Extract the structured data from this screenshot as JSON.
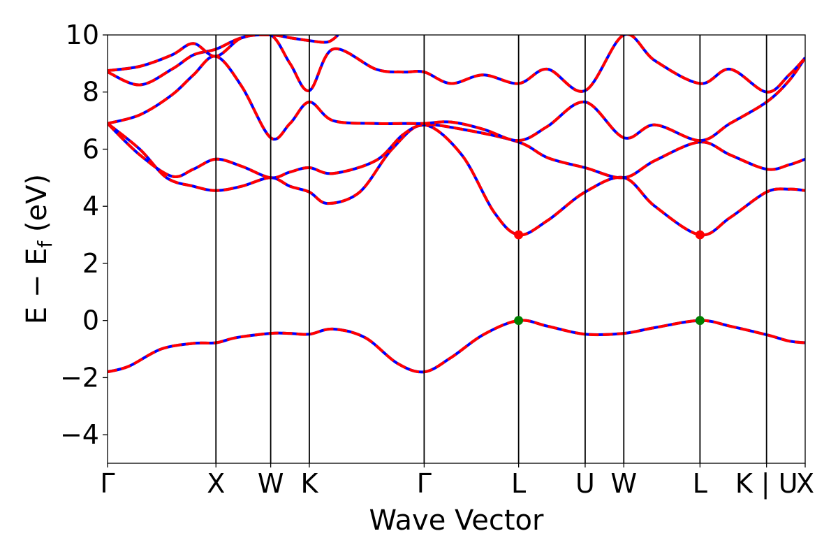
{
  "chart_data": {
    "type": "line",
    "xlabel": "Wave Vector",
    "ylabel": "E − E",
    "ylabel_sub": "f",
    "ylabel_unit": " (eV)",
    "ylim": [
      -5,
      10
    ],
    "yticks": [
      -4,
      -2,
      0,
      2,
      4,
      6,
      8,
      10
    ],
    "ytick_labels": [
      "−4",
      "−2",
      "0",
      "2",
      "4",
      "6",
      "8",
      "10"
    ],
    "xlim": [
      0,
      10
    ],
    "grid": false,
    "legend": "none",
    "kpath": [
      {
        "label": "Γ",
        "x": 0.0
      },
      {
        "label": "X",
        "x": 1.01
      },
      {
        "label": "W",
        "x": 1.52
      },
      {
        "label": "K",
        "x": 1.88
      },
      {
        "label": "Γ",
        "x": 2.95
      },
      {
        "label": "L",
        "x": 3.83
      },
      {
        "label": "U",
        "x": 4.45
      },
      {
        "label": "W",
        "x": 4.81
      },
      {
        "label": "L",
        "x": 5.52
      },
      {
        "label": "K | U",
        "x": 6.14
      },
      {
        "label": "X",
        "x": 6.5
      }
    ],
    "colors": {
      "band_solid": "#0000ff",
      "band_dashed": "#ff0000",
      "cbm_marker": "#ff0000",
      "vbm_marker": "#008000"
    },
    "series": [
      {
        "x": [
          0.0,
          0.2,
          0.5,
          0.8,
          1.01,
          1.2,
          1.52,
          1.7,
          1.88,
          2.1,
          2.4,
          2.7,
          2.95,
          3.2,
          3.5,
          3.83,
          4.1,
          4.45,
          4.81,
          5.1,
          5.52,
          5.8,
          6.14,
          6.35,
          6.5
        ],
        "y": [
          -1.8,
          -1.6,
          -1.0,
          -0.8,
          -0.78,
          -0.6,
          -0.45,
          -0.45,
          -0.48,
          -0.3,
          -0.6,
          -1.5,
          -1.8,
          -1.3,
          -0.5,
          0.0,
          -0.2,
          -0.48,
          -0.45,
          -0.25,
          0.0,
          -0.2,
          -0.5,
          -0.72,
          -0.78
        ]
      },
      {
        "x": [
          0.0,
          0.3,
          0.55,
          0.8,
          1.01,
          1.25,
          1.52,
          1.7,
          1.88,
          2.05,
          2.35,
          2.65,
          2.95,
          3.3,
          3.6,
          3.83,
          4.1,
          4.45,
          4.81,
          5.1,
          5.52,
          5.8,
          6.14,
          6.35,
          6.5
        ],
        "y": [
          6.9,
          6.0,
          5.0,
          4.7,
          4.55,
          4.7,
          5.0,
          4.7,
          4.5,
          4.1,
          4.5,
          6.0,
          6.85,
          5.8,
          3.8,
          3.0,
          3.5,
          4.5,
          5.0,
          4.0,
          3.0,
          3.6,
          4.5,
          4.6,
          4.55
        ]
      },
      {
        "x": [
          0.0,
          0.3,
          0.6,
          0.8,
          1.01,
          1.25,
          1.52,
          1.7,
          1.88,
          2.1,
          2.5,
          2.75,
          2.95,
          3.3,
          3.83,
          4.1,
          4.45,
          4.81,
          5.1,
          5.52,
          5.8,
          6.14,
          6.35,
          6.5
        ],
        "y": [
          6.9,
          5.8,
          5.05,
          5.3,
          5.65,
          5.4,
          5.0,
          5.2,
          5.35,
          5.15,
          5.6,
          6.5,
          6.85,
          6.7,
          6.25,
          5.7,
          5.35,
          5.0,
          5.6,
          6.25,
          5.8,
          5.3,
          5.45,
          5.65
        ]
      },
      {
        "x": [
          0.0,
          0.3,
          0.6,
          0.8,
          1.01,
          1.25,
          1.52,
          1.7,
          1.88,
          2.1,
          2.5,
          2.75,
          2.95,
          3.2,
          3.5,
          3.83,
          4.1,
          4.45,
          4.81,
          5.1,
          5.52,
          5.8,
          6.14,
          6.35,
          6.5
        ],
        "y": [
          6.9,
          7.2,
          7.9,
          8.6,
          9.25,
          8.2,
          6.4,
          6.9,
          7.65,
          7.0,
          6.9,
          6.9,
          6.9,
          6.95,
          6.7,
          6.3,
          6.8,
          7.65,
          6.4,
          6.85,
          6.3,
          6.9,
          7.65,
          8.4,
          9.2
        ]
      },
      {
        "x": [
          0.0,
          0.3,
          0.6,
          0.8,
          1.01,
          1.25,
          1.52,
          1.7,
          1.88,
          2.1,
          2.5,
          2.75,
          2.95,
          3.2,
          3.5,
          3.83,
          4.1,
          4.45,
          4.81,
          5.1,
          5.52,
          5.8,
          6.14,
          6.35,
          6.5
        ],
        "y": [
          8.7,
          8.25,
          8.8,
          9.3,
          9.5,
          9.9,
          10.0,
          9.0,
          8.05,
          9.5,
          8.8,
          8.7,
          8.7,
          8.3,
          8.6,
          8.3,
          8.8,
          8.05,
          10.0,
          9.1,
          8.3,
          8.8,
          8.0,
          8.6,
          9.2
        ]
      },
      {
        "x": [
          0.0,
          0.3,
          0.6,
          0.8,
          1.01,
          1.25,
          1.52,
          1.7,
          1.88,
          2.05,
          2.15
        ],
        "y": [
          8.75,
          8.9,
          9.3,
          9.7,
          9.25,
          9.9,
          10.0,
          9.9,
          9.8,
          9.75,
          10.0
        ]
      }
    ],
    "markers": [
      {
        "x": 3.83,
        "y": 3.0,
        "kind": "cbm"
      },
      {
        "x": 5.52,
        "y": 3.0,
        "kind": "cbm"
      },
      {
        "x": 3.83,
        "y": 0.0,
        "kind": "vbm"
      },
      {
        "x": 5.52,
        "y": 0.0,
        "kind": "vbm"
      }
    ]
  }
}
